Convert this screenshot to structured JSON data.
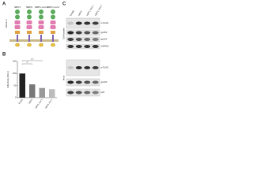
{
  "panel_a": {
    "label": "A",
    "constructs": [
      "NRP1",
      "NRP2",
      "NRP1 mut 1",
      "NRP1 mut 2"
    ],
    "ligand": "VEGF-A"
  },
  "panel_b": {
    "label": "B",
    "chart": {
      "type": "bar",
      "y_label": "Infectivity (RLU)",
      "categories": [
        "Empty",
        "NRP1",
        "NRP1 mut 1",
        "NRP1 mut 2"
      ],
      "values": [
        100,
        55,
        40,
        35
      ],
      "colors": [
        "#222222",
        "#777777",
        "#999999",
        "#bbbbbb"
      ],
      "ylim": [
        0,
        150
      ],
      "yticks": [
        0,
        50,
        100,
        150
      ],
      "significance": [
        "**",
        "***"
      ]
    }
  },
  "panel_c": {
    "label": "C",
    "lanes": [
      "Empty",
      "NRP1",
      "NRP1 mut 1",
      "NRP1 mut 2"
    ],
    "sections": [
      {
        "title": "Cell lysates",
        "bands": [
          "α-FLAG",
          "gp160",
          "gp120",
          "GAPDH"
        ]
      },
      {
        "title": "Virus",
        "bands": [
          "α-FLAG",
          "gp120",
          "p24"
        ]
      }
    ]
  }
}
